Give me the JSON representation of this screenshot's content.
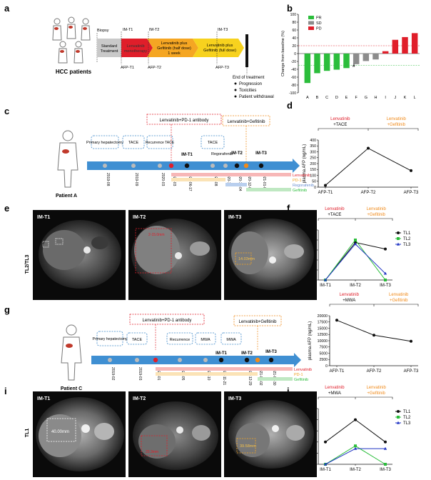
{
  "panels": {
    "a": {
      "letter": "a",
      "hcc_label": "HCC patients",
      "biopsy": "Biopsy",
      "stage_labels": [
        "IM-T1",
        "IM-T2",
        "IM-T3"
      ],
      "afp_labels": [
        "AFP-T1",
        "AFP-T2",
        "AFP-T3"
      ],
      "standard": [
        "Standard",
        "Treatment"
      ],
      "lenv_mono": [
        "Lenvatinib",
        "monotherapy"
      ],
      "half_dose": [
        "Lenvatinib plus",
        "Gefitinib (half dose)",
        "1 week"
      ],
      "full_dose": [
        "Lenvatinib plus",
        "Gefitinib (full dose)"
      ],
      "end_title": "End of treatment",
      "end_items": [
        "Progression",
        "Toxicities",
        "Patient withdrawal"
      ]
    },
    "c": {
      "letter": "c",
      "patient": "Patient A",
      "lenv_pd1": "Lenvatinib+PD-1 antibody",
      "lenv_gef": "Lenvatinib+Gefitinib",
      "events": [
        "Primary hepatectomy",
        "TACE",
        "Recurrence TACE",
        "TACE",
        "Regorafenib"
      ],
      "dates": [
        "2019-08",
        "2019-09",
        "2020-03",
        "2020-03",
        "2020-06-17",
        "2020-08",
        "2020-11",
        "2020-12-04",
        "2020-12-06",
        "2021-01-08"
      ],
      "timepoints": [
        "IM-T1",
        "IM-T2",
        "IM-T3"
      ],
      "legend": [
        "Lenvatinib",
        "PD-1",
        "Regorafenib",
        "Gefitinib"
      ]
    },
    "e": {
      "letter": "e",
      "side_label": "TL2/TL3",
      "image_titles": [
        "IM-T1",
        "IM-T2",
        "IM-T3"
      ],
      "measure_1": "2-15.0mm",
      "measure_2": "14.03mm"
    },
    "g": {
      "letter": "g",
      "patient": "Patient C",
      "lenv_pd1": "Lenvatinib+PD-1 antibody",
      "lenv_gef": "Lenvatinib+Gefitinib",
      "events": [
        "Primary hepatectomy",
        "TACE",
        "Recurrence",
        "MWA",
        "MWA"
      ],
      "dates": [
        "2019-02",
        "2019-03",
        "2020-01",
        "2020-05",
        "2020-10",
        "2020-11-21",
        "2020-12-29",
        "2021-01-02",
        "2021-01-30"
      ],
      "timepoints": [
        "IM-T1",
        "IM-T2",
        "IM-T3"
      ],
      "legend": [
        "Lenvatinib",
        "PD-1",
        "Gefitinib"
      ]
    },
    "i": {
      "letter": "i",
      "side_label": "TL1",
      "image_titles": [
        "IM-T1",
        "IM-T2",
        "IM-T3"
      ],
      "measure_1": "40.00mm",
      "measure_2": "20.3mm",
      "measure_3": "39.58mm"
    }
  },
  "chart_data": [
    {
      "letter": "b",
      "type": "bar",
      "categories": [
        "A",
        "B",
        "C",
        "D",
        "E",
        "F",
        "G",
        "H",
        "I",
        "J",
        "K",
        "L"
      ],
      "values": [
        -75,
        -50,
        -44,
        -41,
        -37,
        -27,
        -19,
        -15,
        6,
        35,
        42,
        52
      ],
      "groups": [
        "PR",
        "PR",
        "PR",
        "PR",
        "PR",
        "SD",
        "SD",
        "SD",
        "PD",
        "PD",
        "PD",
        "PD"
      ],
      "legend": [
        "PR",
        "SD",
        "PD"
      ],
      "colors": {
        "PR": "#2bbd3b",
        "SD": "#8c8c8c",
        "PD": "#e01e2a"
      },
      "ylabel": "Change from baseline (%)",
      "ylim": [
        -100,
        100
      ],
      "yticks": [
        -100,
        -80,
        -60,
        -40,
        -20,
        0,
        20,
        40,
        60,
        80,
        100
      ],
      "ref_lines": [
        20,
        -30
      ],
      "annotation": "#"
    },
    {
      "letter": "d",
      "type": "line",
      "categories": [
        "AFP-T1",
        "AFP-T2",
        "AFP-T3"
      ],
      "values": [
        15,
        330,
        140
      ],
      "ylabel": "plasma AFP (ng/mL)",
      "ylim": [
        0,
        400
      ],
      "yticks": [
        0,
        50,
        100,
        150,
        200,
        250,
        300,
        350,
        400
      ],
      "header_left": [
        "Lenvatinib",
        "+TACE"
      ],
      "header_right": [
        "Lenvatinib",
        "+Gefitinib"
      ]
    },
    {
      "letter": "f",
      "type": "line",
      "categories": [
        "IM-T1",
        "IM-T2",
        "IM-T3"
      ],
      "series": [
        {
          "name": "TL1",
          "values": [
            0,
            75,
            62
          ],
          "color": "#111111"
        },
        {
          "name": "TL2",
          "values": [
            0,
            80,
            0
          ],
          "color": "#2bbd3b"
        },
        {
          "name": "TL3",
          "values": [
            0,
            72,
            13
          ],
          "color": "#2236c4"
        }
      ],
      "ylabel": "Tumor diameter (mm)",
      "ylim": [
        0,
        100
      ],
      "yticks": [
        0,
        20,
        40,
        60,
        80,
        100
      ],
      "header_left": [
        "Lenvatinib",
        "+TACE"
      ],
      "header_right": [
        "Lenvatinib",
        "+Gefitinib"
      ]
    },
    {
      "letter": "h",
      "type": "line",
      "categories": [
        "AFP-T1",
        "AFP-T2",
        "AFP-T3"
      ],
      "values": [
        18200,
        12200,
        9800
      ],
      "ylabel": "plasma AFP (ng/mL)",
      "ylim": [
        0,
        20000
      ],
      "yticks": [
        0,
        2500,
        5000,
        7500,
        10000,
        12500,
        15000,
        17500,
        20000
      ],
      "header_left": [
        "Lenvatinib",
        "+MWA"
      ],
      "header_right": [
        "Lenvatinib",
        "+Gefitinib"
      ]
    },
    {
      "letter": "j",
      "type": "line",
      "categories": [
        "IM-T1",
        "IM-T2",
        "IM-T3"
      ],
      "series": [
        {
          "name": "TL1",
          "values": [
            40,
            80,
            40
          ],
          "color": "#111111"
        },
        {
          "name": "TL2",
          "values": [
            0,
            33,
            0
          ],
          "color": "#2bbd3b"
        },
        {
          "name": "TL3",
          "values": [
            0,
            28,
            28
          ],
          "color": "#2236c4"
        }
      ],
      "ylabel": "Tumor diameter (mm)",
      "ylim": [
        0,
        100
      ],
      "yticks": [
        0,
        20,
        40,
        60,
        80,
        100
      ],
      "header_left": [
        "Lenvatinib",
        "+MWA"
      ],
      "header_right": [
        "Lenvatinib",
        "+Gefitinib"
      ]
    }
  ]
}
